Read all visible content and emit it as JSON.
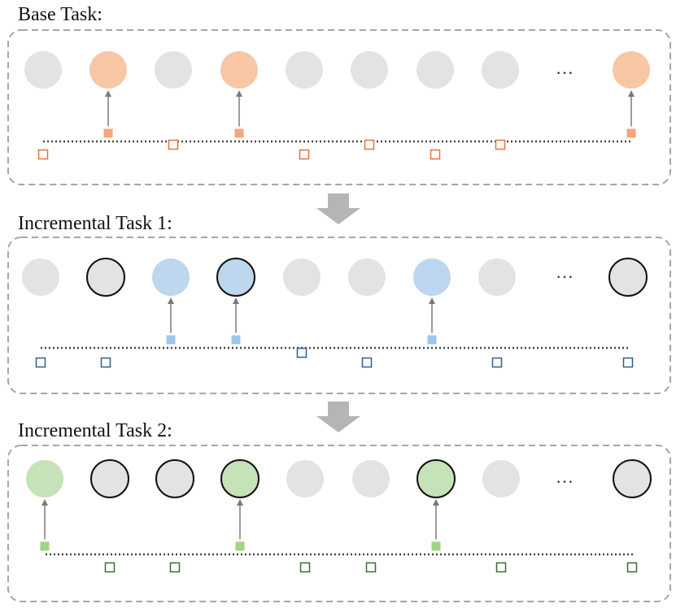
{
  "colors": {
    "inactive_fill": "#e3e3e3",
    "highlight_stroke": "#111111",
    "panel_border": "#a6a6a6",
    "arrow": "#7a7a7a",
    "big_arrow": "#b5b5b5",
    "dotted_line": "#444444"
  },
  "ellipsis": "…",
  "panels": [
    {
      "title": "Base Task:",
      "accent_fill": "#f7c7a6",
      "square_stroke": "#e2733a",
      "square_fill": "#f4a77c",
      "nodes": [
        "gray",
        "accent",
        "gray",
        "accent",
        "gray",
        "gray",
        "gray",
        "gray",
        "ellipsis",
        "accent"
      ],
      "linked_indices": [
        1,
        3,
        9
      ],
      "square_offsets": [
        1,
        -1,
        0,
        -1,
        1,
        0,
        1,
        0,
        0,
        -1
      ],
      "square_slots": [
        0,
        1,
        2,
        3,
        4,
        5,
        6,
        7,
        9
      ]
    },
    {
      "title": "Incremental Task 1:",
      "accent_fill": "#bcd7ee",
      "square_stroke": "#2e5f8e",
      "square_fill": "#9cc7ec",
      "nodes": [
        "gray",
        "outlined-gray",
        "accent",
        "outlined-accent",
        "gray",
        "gray",
        "accent",
        "gray",
        "ellipsis",
        "outlined-gray"
      ],
      "linked_indices": [
        2,
        3,
        6
      ],
      "square_offsets": [
        1,
        1,
        -1,
        -1,
        0,
        1,
        -1,
        1,
        0,
        1
      ],
      "square_slots": [
        0,
        1,
        2,
        3,
        4,
        5,
        6,
        7,
        9
      ]
    },
    {
      "title": "Incremental Task 2:",
      "accent_fill": "#c6e2b8",
      "square_stroke": "#3d6b2c",
      "square_fill": "#9fd67f",
      "nodes": [
        "accent",
        "outlined-gray",
        "outlined-gray",
        "outlined-accent",
        "gray",
        "gray",
        "outlined-accent",
        "gray",
        "ellipsis",
        "outlined-gray"
      ],
      "linked_indices": [
        0,
        3,
        6
      ],
      "square_offsets": [
        -1,
        1,
        1,
        -1,
        1,
        1,
        -1,
        1,
        0,
        1
      ],
      "square_slots": [
        0,
        1,
        2,
        3,
        4,
        5,
        6,
        7,
        9
      ]
    }
  ]
}
